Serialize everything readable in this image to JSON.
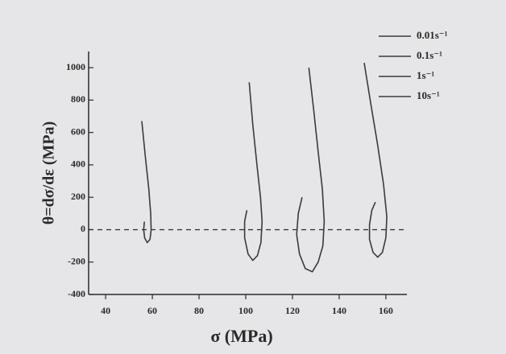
{
  "chart_data": {
    "type": "line",
    "x_label": "σ (MPa)",
    "y_label": "θ=dσ/dε (MPa)",
    "xlim": [
      31,
      169
    ],
    "xticks": [
      40,
      60,
      80,
      100,
      120,
      140,
      160
    ],
    "ylim": [
      -400,
      1100
    ],
    "yticks": [
      -400,
      -200,
      0,
      200,
      400,
      600,
      800,
      1000
    ],
    "reference_line": 0,
    "legend": "upper right",
    "series": [
      {
        "name": "0.01s⁻¹",
        "color": "#3a3a3a",
        "x": [
          55.5,
          57,
          58.5,
          59.3,
          59.5,
          59,
          57.8,
          56.7,
          56.3,
          56.6
        ],
        "values": [
          670,
          450,
          250,
          100,
          0,
          -60,
          -80,
          -50,
          0,
          50
        ]
      },
      {
        "name": "0.1s⁻¹",
        "color": "#3a3a3a",
        "x": [
          101.5,
          103,
          104.8,
          106.3,
          107,
          106.5,
          105,
          103,
          101,
          99.5,
          99.5,
          100.5
        ],
        "values": [
          910,
          650,
          400,
          200,
          50,
          -80,
          -160,
          -190,
          -150,
          -50,
          50,
          120
        ]
      },
      {
        "name": "1s⁻¹",
        "color": "#3a3a3a",
        "x": [
          127,
          129,
          131,
          132.8,
          133.6,
          133,
          131,
          128.5,
          125.5,
          123,
          121.8,
          122.5,
          124.1
        ],
        "values": [
          1000,
          750,
          480,
          250,
          50,
          -100,
          -200,
          -260,
          -240,
          -150,
          -30,
          100,
          200
        ]
      },
      {
        "name": "10s⁻¹",
        "color": "#3a3a3a",
        "x": [
          150.7,
          153.5,
          156.5,
          159,
          160.4,
          160,
          158.5,
          156.5,
          154.5,
          153,
          153,
          154,
          155.5
        ],
        "values": [
          1030,
          780,
          520,
          280,
          80,
          -50,
          -140,
          -170,
          -140,
          -60,
          30,
          120,
          170
        ]
      }
    ]
  }
}
